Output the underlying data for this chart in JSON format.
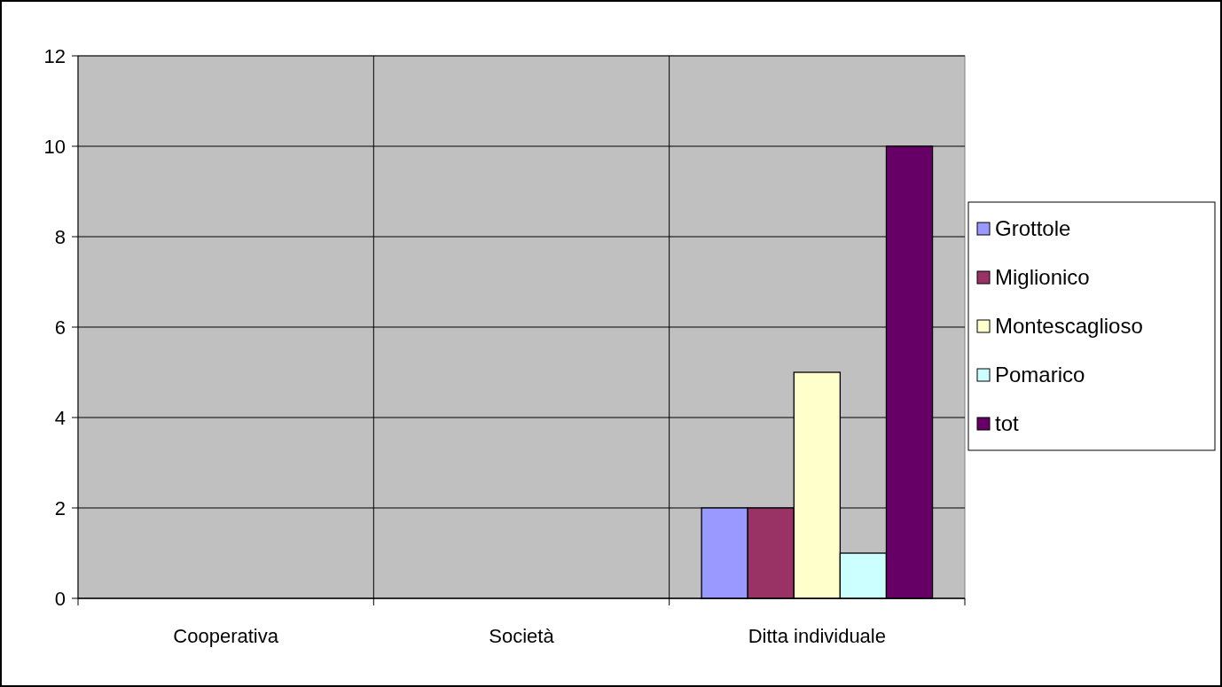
{
  "chart_data": {
    "type": "bar",
    "categories": [
      "Cooperativa",
      "Società",
      "Ditta individuale"
    ],
    "series": [
      {
        "name": "Grottole",
        "color": "#9999ff",
        "values": [
          0,
          0,
          2
        ]
      },
      {
        "name": "Miglionico",
        "color": "#993366",
        "values": [
          0,
          0,
          2
        ]
      },
      {
        "name": "Montescaglioso",
        "color": "#ffffcc",
        "values": [
          0,
          0,
          5
        ]
      },
      {
        "name": "Pomarico",
        "color": "#ccffff",
        "values": [
          0,
          0,
          1
        ]
      },
      {
        "name": "tot",
        "color": "#660066",
        "values": [
          0,
          0,
          10
        ]
      }
    ],
    "ylim": [
      0,
      12
    ],
    "yticks": [
      0,
      2,
      4,
      6,
      8,
      10,
      12
    ],
    "grid": true,
    "legend": "right"
  }
}
